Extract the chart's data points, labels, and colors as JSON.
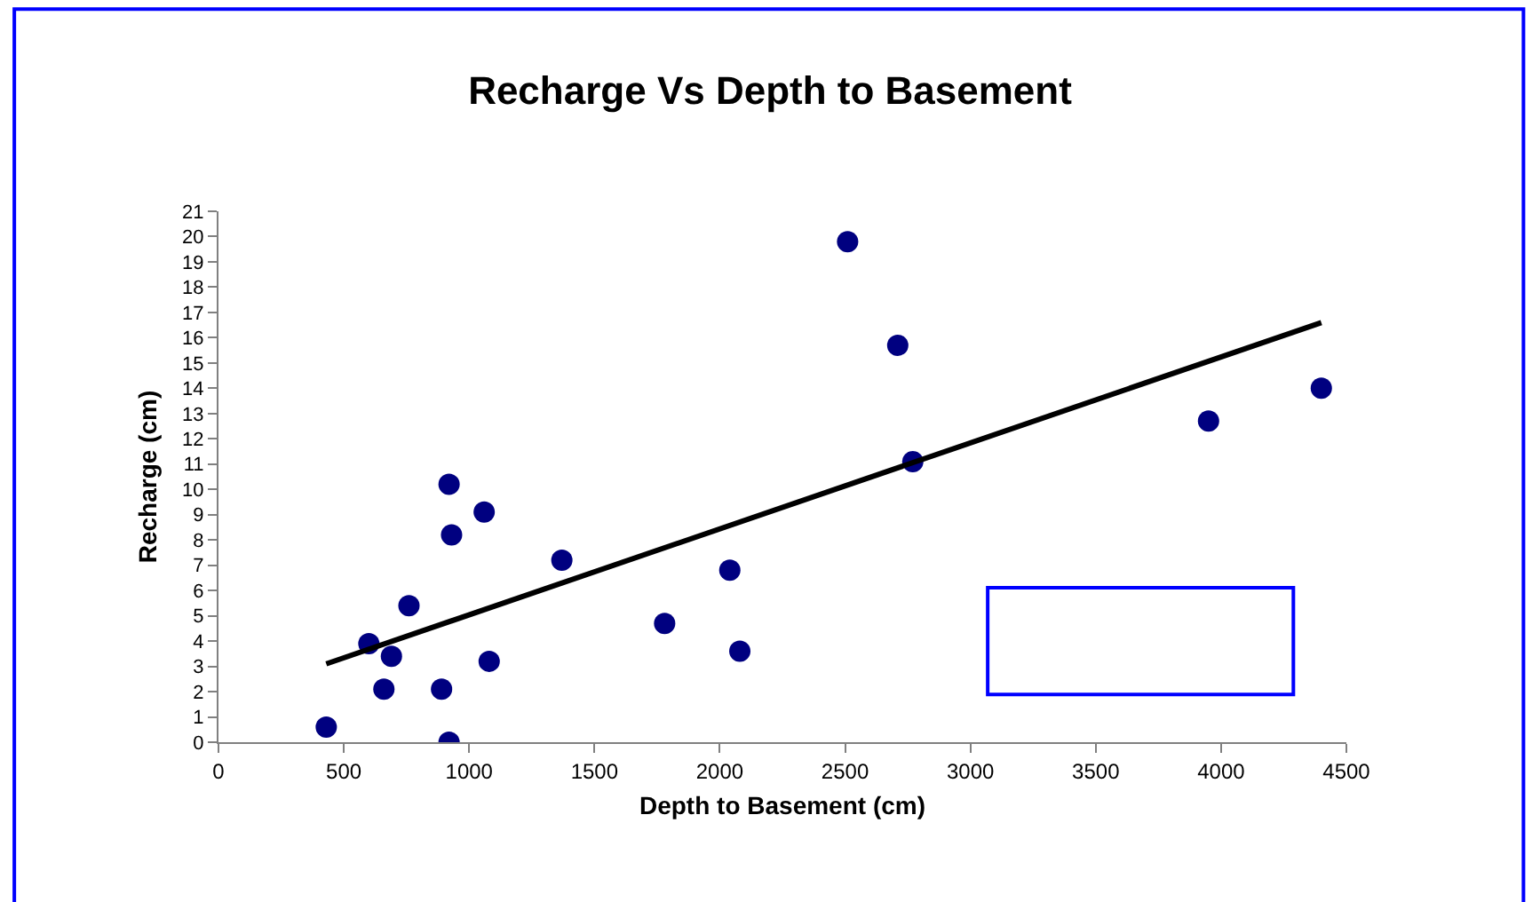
{
  "chart_data": {
    "type": "scatter",
    "title": "Recharge Vs Depth to Basement",
    "xlabel": "Depth to Basement (cm)",
    "ylabel": "Recharge (cm)",
    "xlim": [
      0,
      4500
    ],
    "xticks": [
      0,
      500,
      1000,
      1500,
      2000,
      2500,
      3000,
      3500,
      4000,
      4500
    ],
    "ylim": [
      0,
      21
    ],
    "yticks": [
      0,
      1,
      2,
      3,
      4,
      5,
      6,
      7,
      8,
      9,
      10,
      11,
      12,
      13,
      14,
      15,
      16,
      17,
      18,
      19,
      20,
      21
    ],
    "series": [
      {
        "marker": "circle",
        "color": "#000080",
        "x": [
          430,
          600,
          660,
          690,
          760,
          890,
          920,
          920,
          930,
          1060,
          1080,
          1370,
          1780,
          2040,
          2080,
          2510,
          2710,
          2770,
          3950,
          4400
        ],
        "values": [
          0.6,
          3.9,
          2.1,
          3.4,
          5.4,
          2.1,
          0,
          10.2,
          8.2,
          9.1,
          3.2,
          7.2,
          4.7,
          6.8,
          3.6,
          19.8,
          15.7,
          11.1,
          12.7,
          14.0
        ]
      },
      {
        "type": "line",
        "marker": "none",
        "color": "#000000",
        "x": [
          430,
          4400
        ],
        "values": [
          3.1,
          16.6
        ]
      }
    ]
  }
}
